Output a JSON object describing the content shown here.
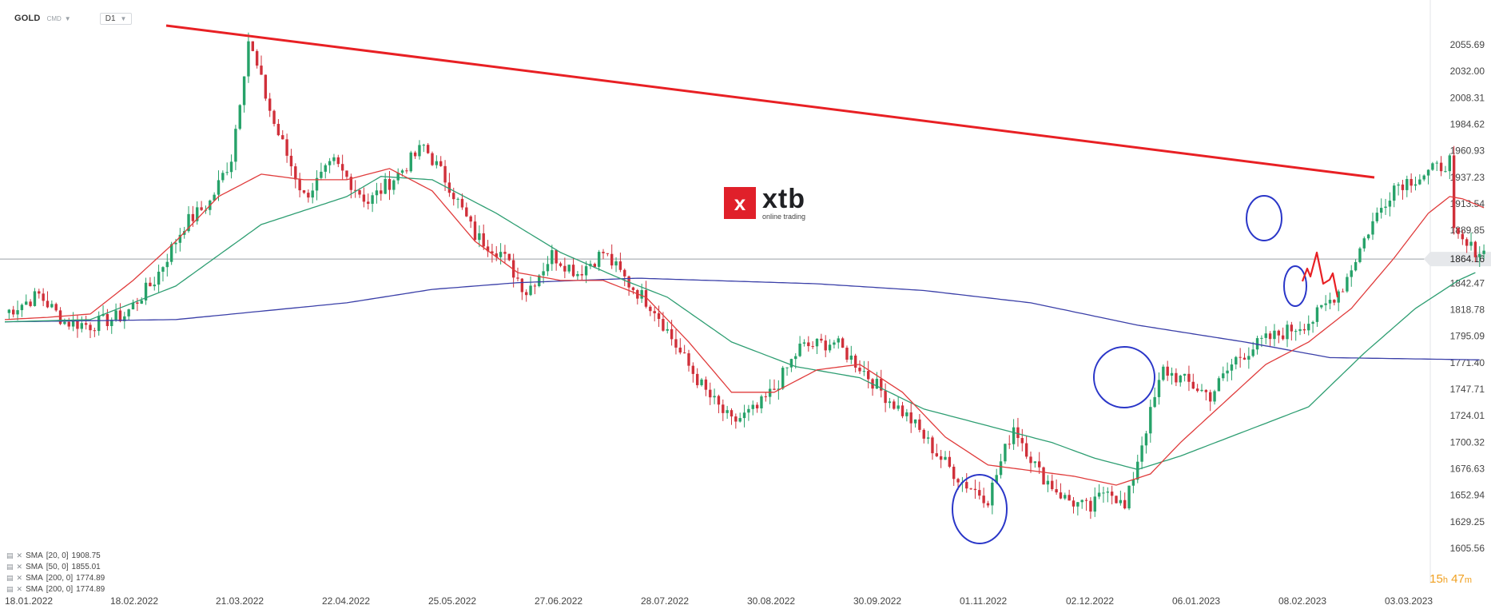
{
  "header": {
    "symbol": "GOLD",
    "symbol_type": "CMD",
    "timeframe": "D1"
  },
  "logo": {
    "mark": "x",
    "word": "xtb",
    "subtitle": "online trading"
  },
  "timer": {
    "hours": "15",
    "h_unit": "h",
    "minutes": "47",
    "m_unit": "m"
  },
  "indicators": [
    {
      "label": "SMA",
      "params": "[20,  0]",
      "value": "1908.75"
    },
    {
      "label": "SMA",
      "params": "[50,  0]",
      "value": "1855.01"
    },
    {
      "label": "SMA",
      "params": "[200,  0]",
      "value": "1774.89"
    },
    {
      "label": "SMA",
      "params": "[200,  0]",
      "value": "1774.89"
    }
  ],
  "colors": {
    "up": "#26a269",
    "down": "#d0303a",
    "sma20": "#e03c3c",
    "sma50": "#2e9e72",
    "sma200": "#3a3fa8",
    "trendline": "#e82024",
    "circles": "#2a36c8",
    "price_line": "#9aa0a6",
    "price_tag_bg": "#e6e8eb",
    "axis_text": "#444444"
  },
  "chart_data": {
    "type": "candlestick",
    "instrument": "GOLD",
    "timeframe": "D1",
    "y_ticks": [
      2055.69,
      2032.0,
      2008.31,
      1984.62,
      1960.93,
      1937.23,
      1913.54,
      1889.85,
      1842.47,
      1818.78,
      1795.09,
      1771.4,
      1747.71,
      1724.01,
      1700.32,
      1676.63,
      1652.94,
      1629.25,
      1605.56
    ],
    "ylim": [
      1600,
      2070
    ],
    "current_price": 1864.16,
    "x_ticks": [
      "18.01.2022",
      "18.02.2022",
      "21.03.2022",
      "22.04.2022",
      "25.05.2022",
      "27.06.2022",
      "28.07.2022",
      "30.08.2022",
      "30.09.2022",
      "01.11.2022",
      "02.12.2022",
      "06.01.2023",
      "08.02.2023",
      "03.03.2023"
    ],
    "last_candle_index": 283,
    "series": [
      {
        "name": "SMA [20, 0]",
        "last_value": 1908.75
      },
      {
        "name": "SMA [50, 0]",
        "last_value": 1855.01
      },
      {
        "name": "SMA [200, 0]",
        "last_value": 1774.89
      }
    ],
    "path_anchors": [
      [
        0,
        1816
      ],
      [
        8,
        1832
      ],
      [
        14,
        1808
      ],
      [
        20,
        1805
      ],
      [
        28,
        1814
      ],
      [
        35,
        1845
      ],
      [
        42,
        1895
      ],
      [
        48,
        1915
      ],
      [
        53,
        1955
      ],
      [
        57,
        2060
      ],
      [
        63,
        1985
      ],
      [
        70,
        1920
      ],
      [
        77,
        1950
      ],
      [
        85,
        1915
      ],
      [
        92,
        1940
      ],
      [
        98,
        1965
      ],
      [
        104,
        1930
      ],
      [
        110,
        1885
      ],
      [
        116,
        1870
      ],
      [
        122,
        1835
      ],
      [
        128,
        1868
      ],
      [
        134,
        1852
      ],
      [
        140,
        1870
      ],
      [
        146,
        1842
      ],
      [
        152,
        1820
      ],
      [
        158,
        1780
      ],
      [
        164,
        1745
      ],
      [
        170,
        1718
      ],
      [
        176,
        1730
      ],
      [
        180,
        1748
      ],
      [
        186,
        1785
      ],
      [
        194,
        1790
      ],
      [
        200,
        1768
      ],
      [
        206,
        1742
      ],
      [
        212,
        1720
      ],
      [
        218,
        1690
      ],
      [
        224,
        1665
      ],
      [
        230,
        1650
      ],
      [
        236,
        1715
      ],
      [
        242,
        1673
      ],
      [
        248,
        1650
      ],
      [
        254,
        1640
      ],
      [
        258,
        1662
      ],
      [
        262,
        1640
      ],
      [
        266,
        1700
      ],
      [
        271,
        1765
      ],
      [
        276,
        1755
      ],
      [
        282,
        1742
      ],
      [
        288,
        1775
      ],
      [
        294,
        1790
      ],
      [
        300,
        1800
      ],
      [
        306,
        1810
      ],
      [
        313,
        1840
      ],
      [
        319,
        1890
      ],
      [
        325,
        1930
      ],
      [
        331,
        1938
      ],
      [
        335,
        1945
      ],
      [
        338,
        1952
      ],
      [
        339,
        1885
      ],
      [
        342,
        1875
      ],
      [
        346,
        1870
      ],
      [
        349,
        1866
      ]
    ],
    "sma20_anchors": [
      [
        0,
        1810
      ],
      [
        10,
        1812
      ],
      [
        20,
        1815
      ],
      [
        30,
        1845
      ],
      [
        40,
        1880
      ],
      [
        50,
        1920
      ],
      [
        60,
        1940
      ],
      [
        70,
        1935
      ],
      [
        80,
        1935
      ],
      [
        90,
        1945
      ],
      [
        100,
        1925
      ],
      [
        110,
        1880
      ],
      [
        120,
        1852
      ],
      [
        130,
        1845
      ],
      [
        140,
        1845
      ],
      [
        150,
        1830
      ],
      [
        160,
        1790
      ],
      [
        170,
        1745
      ],
      [
        180,
        1745
      ],
      [
        190,
        1765
      ],
      [
        200,
        1770
      ],
      [
        210,
        1745
      ],
      [
        220,
        1705
      ],
      [
        230,
        1680
      ],
      [
        240,
        1675
      ],
      [
        250,
        1670
      ],
      [
        260,
        1662
      ],
      [
        268,
        1672
      ],
      [
        275,
        1700
      ],
      [
        285,
        1735
      ],
      [
        295,
        1770
      ],
      [
        305,
        1790
      ],
      [
        315,
        1820
      ],
      [
        325,
        1865
      ],
      [
        333,
        1905
      ],
      [
        338,
        1920
      ],
      [
        341,
        1918
      ],
      [
        346,
        1910
      ]
    ],
    "sma50_anchors": [
      [
        0,
        1808
      ],
      [
        20,
        1810
      ],
      [
        40,
        1840
      ],
      [
        60,
        1895
      ],
      [
        80,
        1920
      ],
      [
        88,
        1938
      ],
      [
        100,
        1935
      ],
      [
        115,
        1905
      ],
      [
        130,
        1870
      ],
      [
        145,
        1845
      ],
      [
        155,
        1830
      ],
      [
        170,
        1790
      ],
      [
        185,
        1768
      ],
      [
        200,
        1758
      ],
      [
        215,
        1730
      ],
      [
        230,
        1715
      ],
      [
        245,
        1700
      ],
      [
        255,
        1686
      ],
      [
        265,
        1676
      ],
      [
        275,
        1688
      ],
      [
        290,
        1710
      ],
      [
        305,
        1732
      ],
      [
        318,
        1780
      ],
      [
        330,
        1820
      ],
      [
        340,
        1845
      ],
      [
        344,
        1852
      ]
    ],
    "sma200_anchors": [
      [
        0,
        1808
      ],
      [
        40,
        1810
      ],
      [
        80,
        1825
      ],
      [
        100,
        1837
      ],
      [
        120,
        1843
      ],
      [
        148,
        1847
      ],
      [
        165,
        1845
      ],
      [
        190,
        1842
      ],
      [
        215,
        1836
      ],
      [
        240,
        1825
      ],
      [
        265,
        1805
      ],
      [
        290,
        1790
      ],
      [
        310,
        1776
      ],
      [
        345,
        1774
      ]
    ]
  }
}
